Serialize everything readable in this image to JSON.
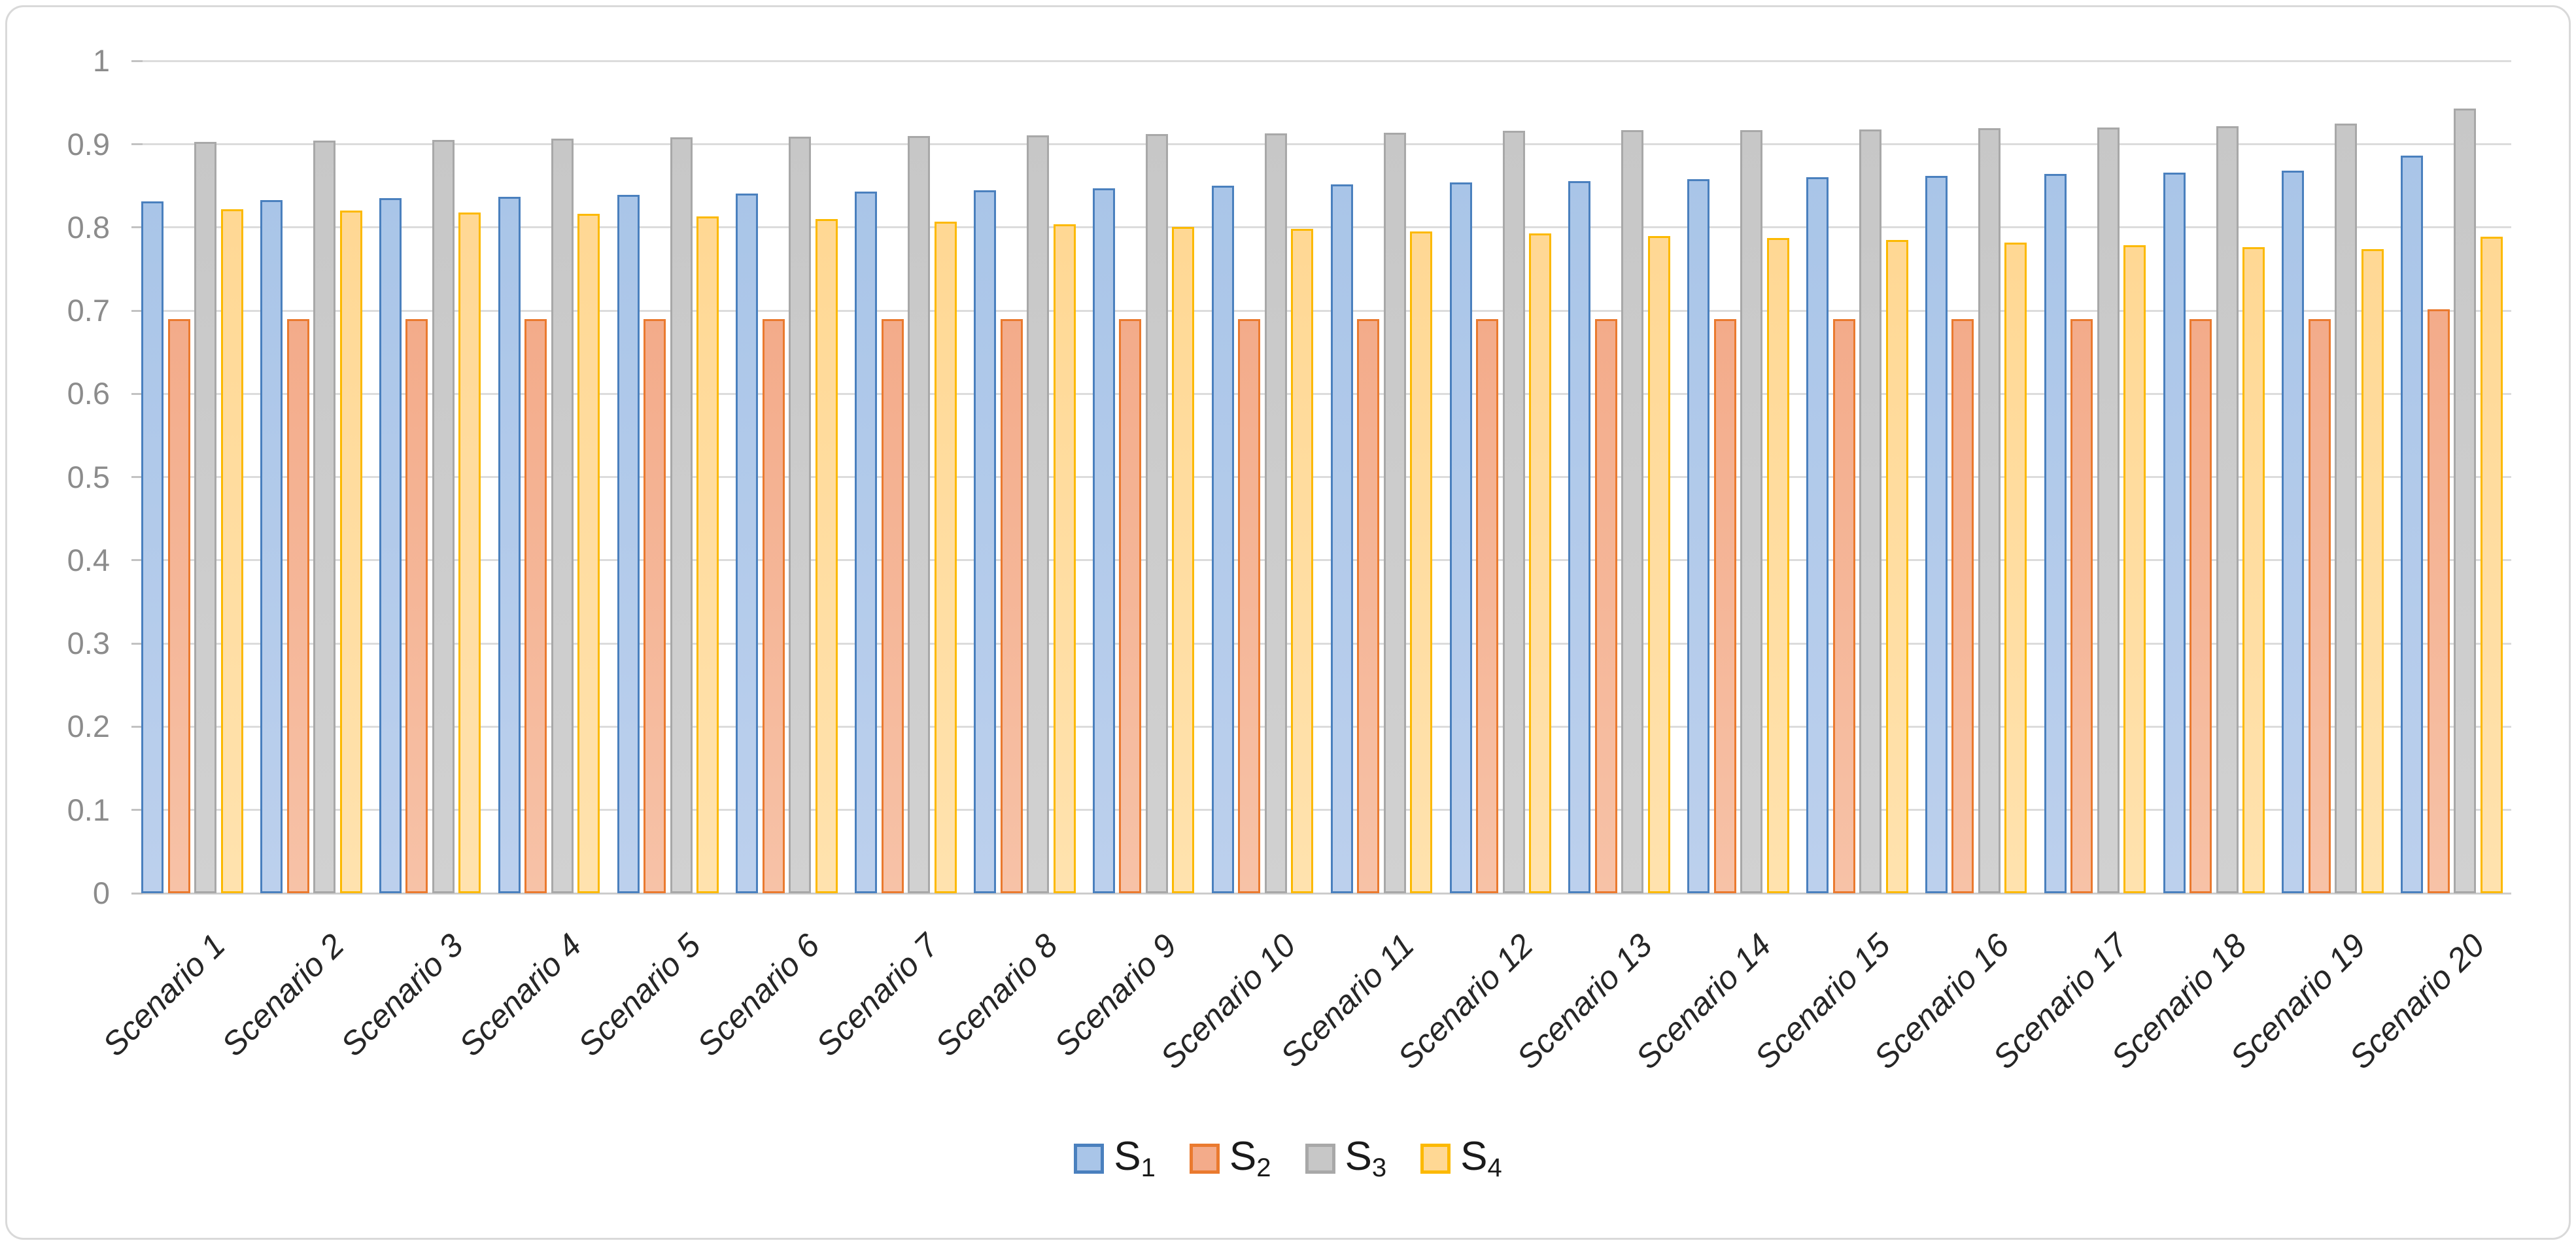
{
  "figure": {
    "background_color": "#ffffff",
    "frame_color": "#d9d9d9"
  },
  "axes_style": {
    "grid_color": "#dcdcdc",
    "axis_line_color": "#cccccc",
    "tick_color": "#c2c2c2",
    "y_label_color": "#8c8c8c",
    "x_label_color": "#262626"
  },
  "chart_data": {
    "type": "bar",
    "title": "",
    "xlabel": "",
    "ylabel": "",
    "ylim": [
      0,
      1
    ],
    "ytick_step": 0.1,
    "ytick_labels": [
      "0",
      "0.1",
      "0.2",
      "0.3",
      "0.4",
      "0.5",
      "0.6",
      "0.7",
      "0.8",
      "0.9",
      "1"
    ],
    "grid": true,
    "legend_position": "bottom-center",
    "categories": [
      "Scenario 1",
      "Scenario 2",
      "Scenario 3",
      "Scenario 4",
      "Scenario 5",
      "Scenario 6",
      "Scenario 7",
      "Scenario 8",
      "Scenario 9",
      "Scenario 10",
      "Scenario 11",
      "Scenario 12",
      "Scenario 13",
      "Scenario 14",
      "Scenario 15",
      "Scenario 16",
      "Scenario 17",
      "Scenario 18",
      "Scenario 19",
      "Scenario 20"
    ],
    "series": [
      {
        "name": "S1",
        "label_base": "S",
        "label_sub": "1",
        "border_color": "#4a80be",
        "fill_color": "#a9c5e8",
        "fill_color_bottom": "#bcd0ed",
        "values": [
          0.831,
          0.833,
          0.835,
          0.837,
          0.839,
          0.841,
          0.843,
          0.845,
          0.847,
          0.85,
          0.852,
          0.854,
          0.856,
          0.858,
          0.86,
          0.862,
          0.864,
          0.866,
          0.868,
          0.886
        ]
      },
      {
        "name": "S2",
        "label_base": "S",
        "label_sub": "2",
        "border_color": "#ea7a2f",
        "fill_color": "#f3ab8a",
        "fill_color_bottom": "#f7c2a7",
        "values": [
          0.69,
          0.69,
          0.69,
          0.69,
          0.69,
          0.69,
          0.69,
          0.69,
          0.69,
          0.69,
          0.69,
          0.69,
          0.69,
          0.69,
          0.69,
          0.69,
          0.69,
          0.69,
          0.69,
          0.702
        ]
      },
      {
        "name": "S3",
        "label_base": "S",
        "label_sub": "3",
        "border_color": "#a8a8a8",
        "fill_color": "#c7c7c7",
        "fill_color_bottom": "#d1d1d1",
        "values": [
          0.903,
          0.904,
          0.905,
          0.907,
          0.908,
          0.909,
          0.91,
          0.911,
          0.912,
          0.913,
          0.914,
          0.916,
          0.917,
          0.917,
          0.918,
          0.919,
          0.92,
          0.922,
          0.925,
          0.943
        ]
      },
      {
        "name": "S4",
        "label_base": "S",
        "label_sub": "4",
        "border_color": "#fcb900",
        "fill_color": "#ffd894",
        "fill_color_bottom": "#ffe2ae",
        "values": [
          0.822,
          0.82,
          0.818,
          0.816,
          0.813,
          0.81,
          0.807,
          0.804,
          0.801,
          0.798,
          0.795,
          0.793,
          0.79,
          0.787,
          0.785,
          0.782,
          0.779,
          0.776,
          0.774,
          0.789
        ]
      }
    ]
  }
}
